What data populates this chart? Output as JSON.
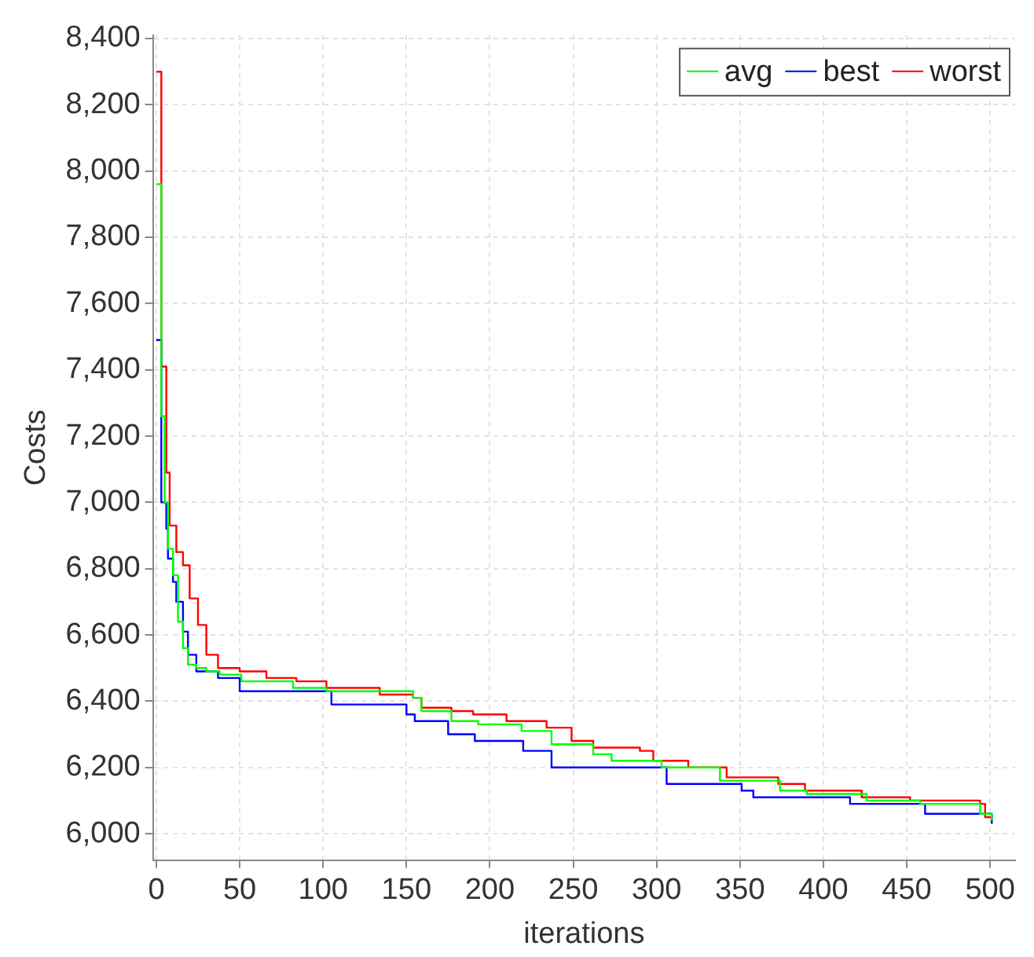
{
  "chart_data": {
    "type": "step",
    "xlabel": "iterations",
    "ylabel": "Costs",
    "xlim": [
      -2,
      515
    ],
    "ylim": [
      5920,
      8410
    ],
    "xticks": [
      0,
      50,
      100,
      150,
      200,
      250,
      300,
      350,
      400,
      450,
      500
    ],
    "yticks": [
      {
        "value": 6000,
        "label": "6,000"
      },
      {
        "value": 6200,
        "label": "6,200"
      },
      {
        "value": 6400,
        "label": "6,400"
      },
      {
        "value": 6600,
        "label": "6,600"
      },
      {
        "value": 6800,
        "label": "6,800"
      },
      {
        "value": 7000,
        "label": "7,000"
      },
      {
        "value": 7200,
        "label": "7,200"
      },
      {
        "value": 7400,
        "label": "7,400"
      },
      {
        "value": 7600,
        "label": "7,600"
      },
      {
        "value": 7800,
        "label": "7,800"
      },
      {
        "value": 8000,
        "label": "8,000"
      },
      {
        "value": 8200,
        "label": "8,200"
      },
      {
        "value": 8400,
        "label": "8,400"
      }
    ],
    "grid": true,
    "legend": "top right",
    "line_style": "solid",
    "marker": "none",
    "series": [
      {
        "name": "avg",
        "color": "#00ff00",
        "x": [
          0,
          3,
          5,
          7,
          10,
          13,
          16,
          19,
          24,
          30,
          38,
          51,
          82,
          102,
          154,
          159,
          177,
          193,
          219,
          237,
          262,
          273,
          303,
          338,
          374,
          390,
          426,
          458,
          494,
          501
        ],
        "values": [
          7960,
          7260,
          7000,
          6860,
          6780,
          6640,
          6560,
          6510,
          6500,
          6490,
          6480,
          6460,
          6440,
          6430,
          6410,
          6370,
          6340,
          6330,
          6310,
          6270,
          6240,
          6220,
          6200,
          6160,
          6130,
          6120,
          6100,
          6090,
          6060,
          6040
        ]
      },
      {
        "name": "best",
        "color": "#0000ff",
        "x": [
          0,
          3,
          6,
          7,
          10,
          12,
          16,
          19,
          24,
          37,
          50,
          105,
          150,
          155,
          175,
          191,
          220,
          237,
          306,
          351,
          358,
          416,
          461,
          501
        ],
        "values": [
          7490,
          7000,
          6920,
          6830,
          6760,
          6700,
          6610,
          6540,
          6490,
          6470,
          6430,
          6390,
          6360,
          6340,
          6300,
          6280,
          6250,
          6200,
          6150,
          6130,
          6110,
          6090,
          6060,
          6030
        ]
      },
      {
        "name": "worst",
        "color": "#ff0000",
        "x": [
          0,
          3,
          6,
          8,
          12,
          16,
          20,
          25,
          30,
          37,
          50,
          66,
          84,
          102,
          134,
          154,
          159,
          177,
          190,
          210,
          234,
          249,
          262,
          290,
          298,
          319,
          342,
          373,
          389,
          423,
          452,
          494,
          497,
          501
        ],
        "values": [
          8300,
          7410,
          7090,
          6930,
          6850,
          6810,
          6710,
          6630,
          6540,
          6500,
          6490,
          6470,
          6460,
          6440,
          6420,
          6410,
          6380,
          6370,
          6360,
          6340,
          6320,
          6280,
          6260,
          6250,
          6220,
          6200,
          6170,
          6150,
          6130,
          6110,
          6100,
          6090,
          6050,
          6050
        ]
      }
    ]
  }
}
